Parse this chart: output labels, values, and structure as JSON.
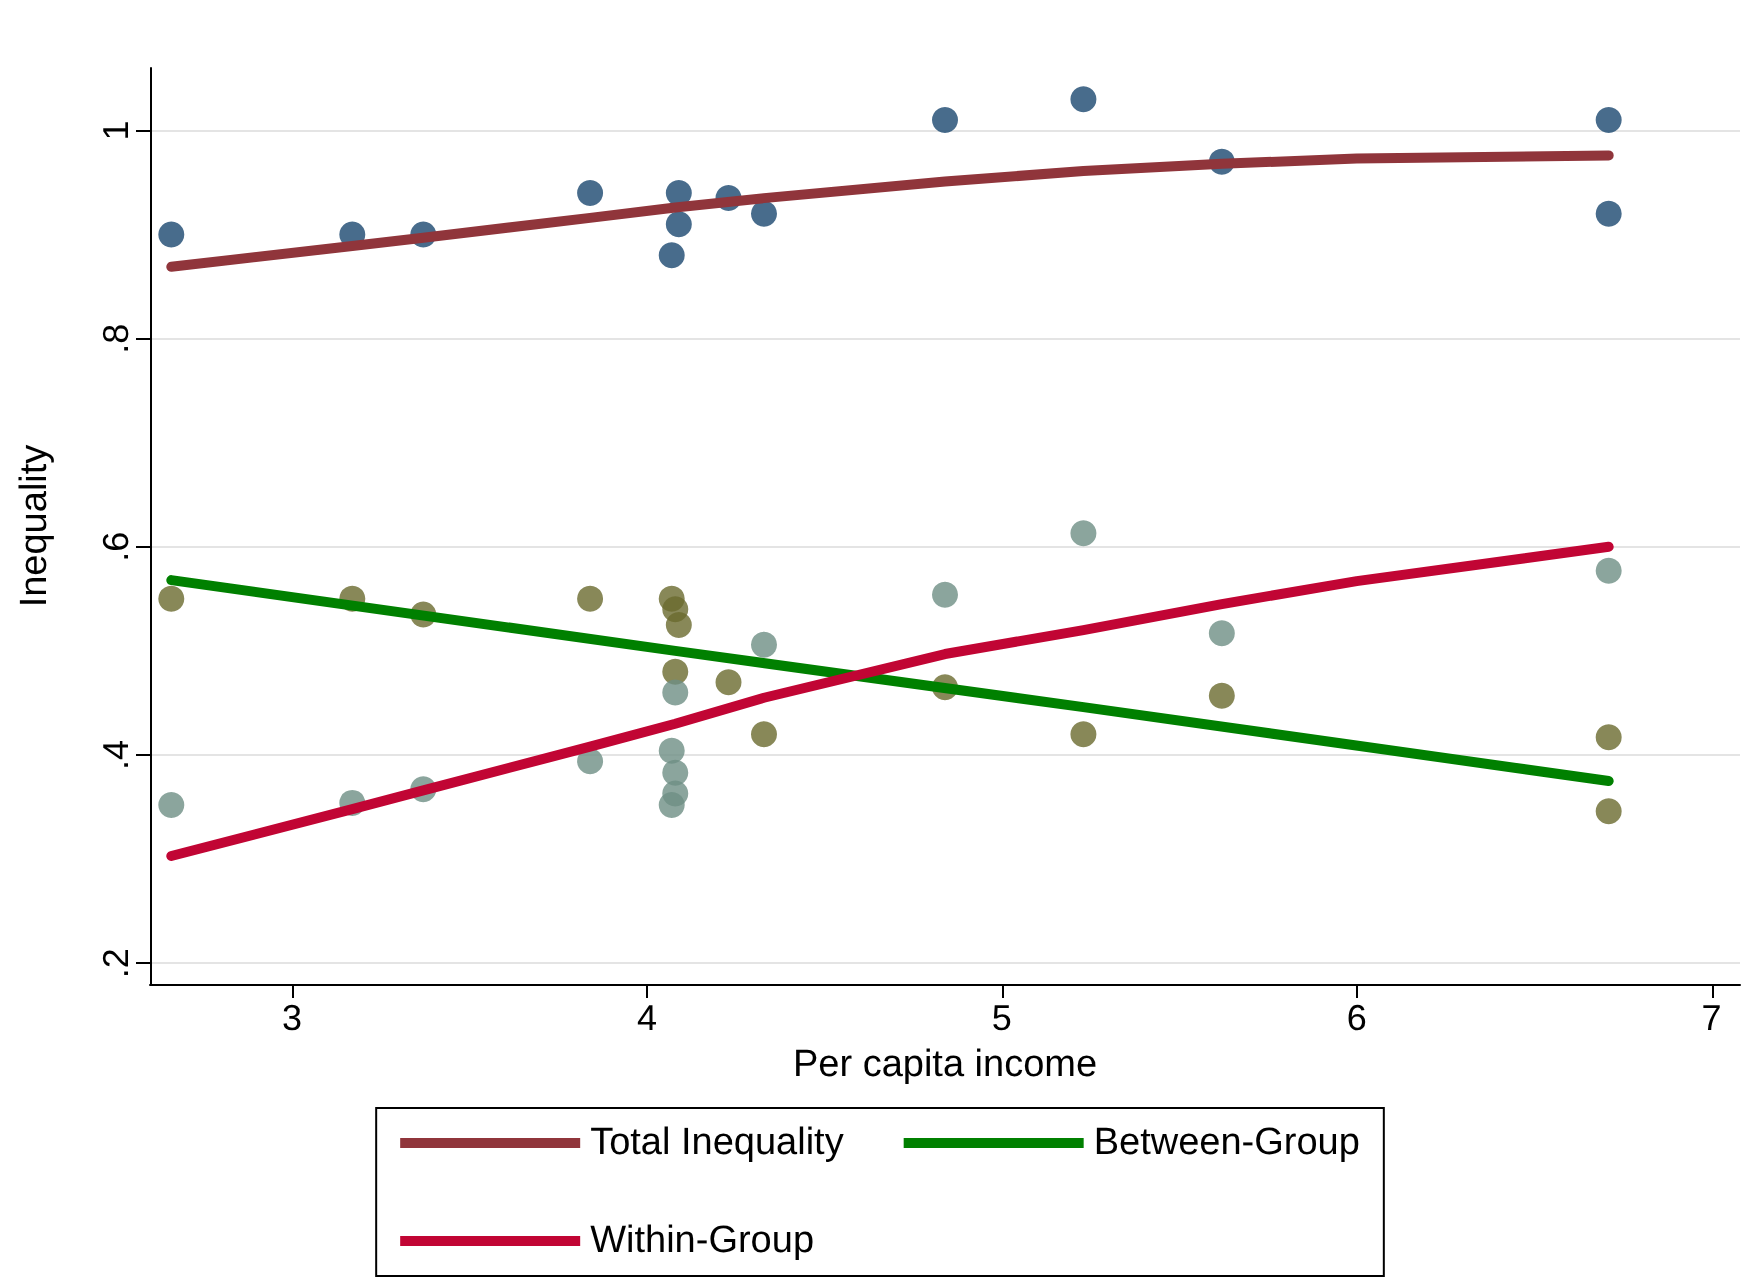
{
  "chart_data": {
    "type": "scatter",
    "xlabel": "Per capita income",
    "ylabel": "Inequality",
    "xlim": [
      2.6,
      7.08
    ],
    "ylim": [
      0.18,
      1.06
    ],
    "xticks": [
      3,
      4,
      5,
      6,
      7
    ],
    "yticks": [
      {
        "value": 0.2,
        "label": ".2"
      },
      {
        "value": 0.4,
        "label": ".4"
      },
      {
        "value": 0.6,
        "label": ".6"
      },
      {
        "value": 0.8,
        "label": ".8"
      },
      {
        "value": 1,
        "label": "1"
      }
    ],
    "grid": "y",
    "legend": "bottom",
    "series": [
      {
        "marker": "circle",
        "color": "#1a476f",
        "x": [
          2.66,
          3.17,
          3.37,
          3.84,
          4.07,
          4.08,
          4.09,
          4.07,
          4.09,
          4.23,
          4.33,
          4.84,
          5.23,
          5.62,
          6.71,
          6.71
        ],
        "values": [
          0.9,
          0.9,
          0.9,
          0.94,
          null,
          null,
          0.91,
          0.88,
          0.94,
          0.935,
          0.92,
          1.01,
          1.03,
          0.97,
          1.01,
          0.92
        ]
      },
      {
        "marker": "circle",
        "color": "#6a6a2e",
        "x": [
          2.66,
          3.17,
          3.37,
          3.84,
          4.07,
          4.08,
          4.09,
          4.08,
          4.23,
          4.33,
          4.84,
          5.23,
          5.62,
          6.71,
          6.71
        ],
        "values": [
          0.55,
          0.55,
          0.535,
          0.55,
          0.55,
          0.54,
          0.525,
          0.48,
          0.47,
          0.42,
          0.465,
          0.42,
          0.457,
          0.417,
          0.346
        ]
      },
      {
        "marker": "circle",
        "color": "#6e8e84",
        "x": [
          2.66,
          3.17,
          3.37,
          3.84,
          4.07,
          4.08,
          4.08,
          4.07,
          4.08,
          4.33,
          4.84,
          5.23,
          5.62,
          6.71
        ],
        "values": [
          0.352,
          0.354,
          0.367,
          0.394,
          0.404,
          0.383,
          0.363,
          0.352,
          0.46,
          0.506,
          0.554,
          0.613,
          0.517,
          0.577
        ]
      },
      {
        "name": "Total Inequality",
        "type": "line",
        "marker": "none",
        "color": "#90353b",
        "x": [
          2.66,
          3.17,
          3.37,
          3.84,
          4.08,
          4.33,
          4.84,
          5.23,
          5.62,
          6.0,
          6.71
        ],
        "values": [
          0.869,
          0.889,
          0.897,
          0.916,
          0.926,
          0.935,
          0.951,
          0.961,
          0.968,
          0.973,
          0.976
        ]
      },
      {
        "name": "Between-Group",
        "type": "line",
        "marker": "none",
        "color": "#008000",
        "x": [
          2.66,
          4.08,
          5.23,
          6.71
        ],
        "values": [
          0.568,
          0.5,
          0.446,
          0.375
        ]
      },
      {
        "name": "Within-Group",
        "type": "line",
        "marker": "none",
        "color": "#c10534",
        "x": [
          2.66,
          3.17,
          3.37,
          3.84,
          4.08,
          4.33,
          4.84,
          5.23,
          5.62,
          6.0,
          6.71
        ],
        "values": [
          0.303,
          0.348,
          0.366,
          0.408,
          0.43,
          0.455,
          0.497,
          0.52,
          0.545,
          0.567,
          0.6
        ]
      }
    ]
  }
}
